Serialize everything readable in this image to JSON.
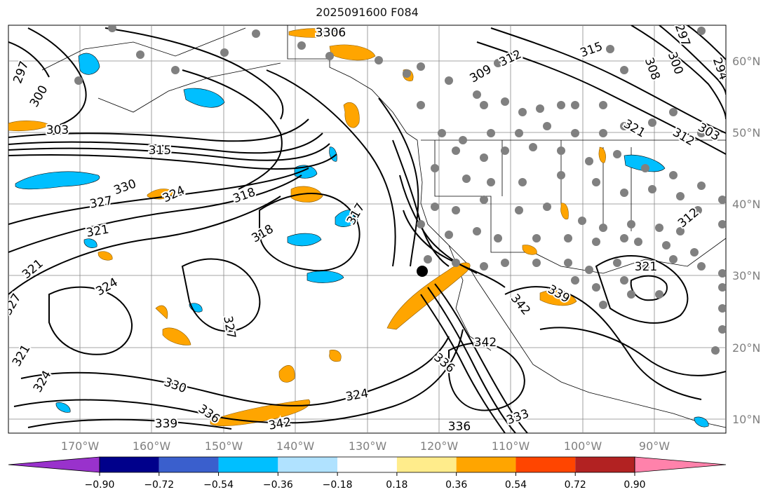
{
  "title": "2025091600 F084",
  "lon_labels": [
    "170°W",
    "160°W",
    "150°W",
    "140°W",
    "130°W",
    "120°W",
    "110°W",
    "100°W",
    "90°W"
  ],
  "lat_labels": [
    "60°N",
    "50°N",
    "40°N",
    "30°N",
    "20°N",
    "10°N"
  ],
  "contour_labels": [
    "306",
    "306",
    "297",
    "300",
    "309",
    "312",
    "315",
    "300",
    "308",
    "294",
    "297",
    "303",
    "312",
    "321",
    "303",
    "315",
    "327",
    "330",
    "324",
    "318",
    "318",
    "317",
    "327",
    "321",
    "321",
    "324",
    "327",
    "321",
    "324",
    "330",
    "336",
    "339",
    "342",
    "324",
    "336",
    "333",
    "342",
    "339",
    "342",
    "336",
    "312",
    "321"
  ],
  "colorbar": {
    "ticks": [
      "−0.90",
      "−0.72",
      "−0.54",
      "−0.36",
      "−0.18",
      "0.18",
      "0.36",
      "0.54",
      "0.72",
      "0.90"
    ],
    "colors": [
      "#9932cc",
      "#00008b",
      "#3a5fcd",
      "#00bfff",
      "#b0e2ff",
      "#ffffff",
      "#ffec8b",
      "#ffa500",
      "#ff4500",
      "#b22222",
      "#ff82ab"
    ]
  },
  "colors": {
    "positive_fill": "#ffa500",
    "positive_light": "#ffec8b",
    "negative_fill": "#00bfff",
    "negative_light": "#b0e2ff",
    "station_marker": "#808080",
    "axis_label": "#808080"
  }
}
